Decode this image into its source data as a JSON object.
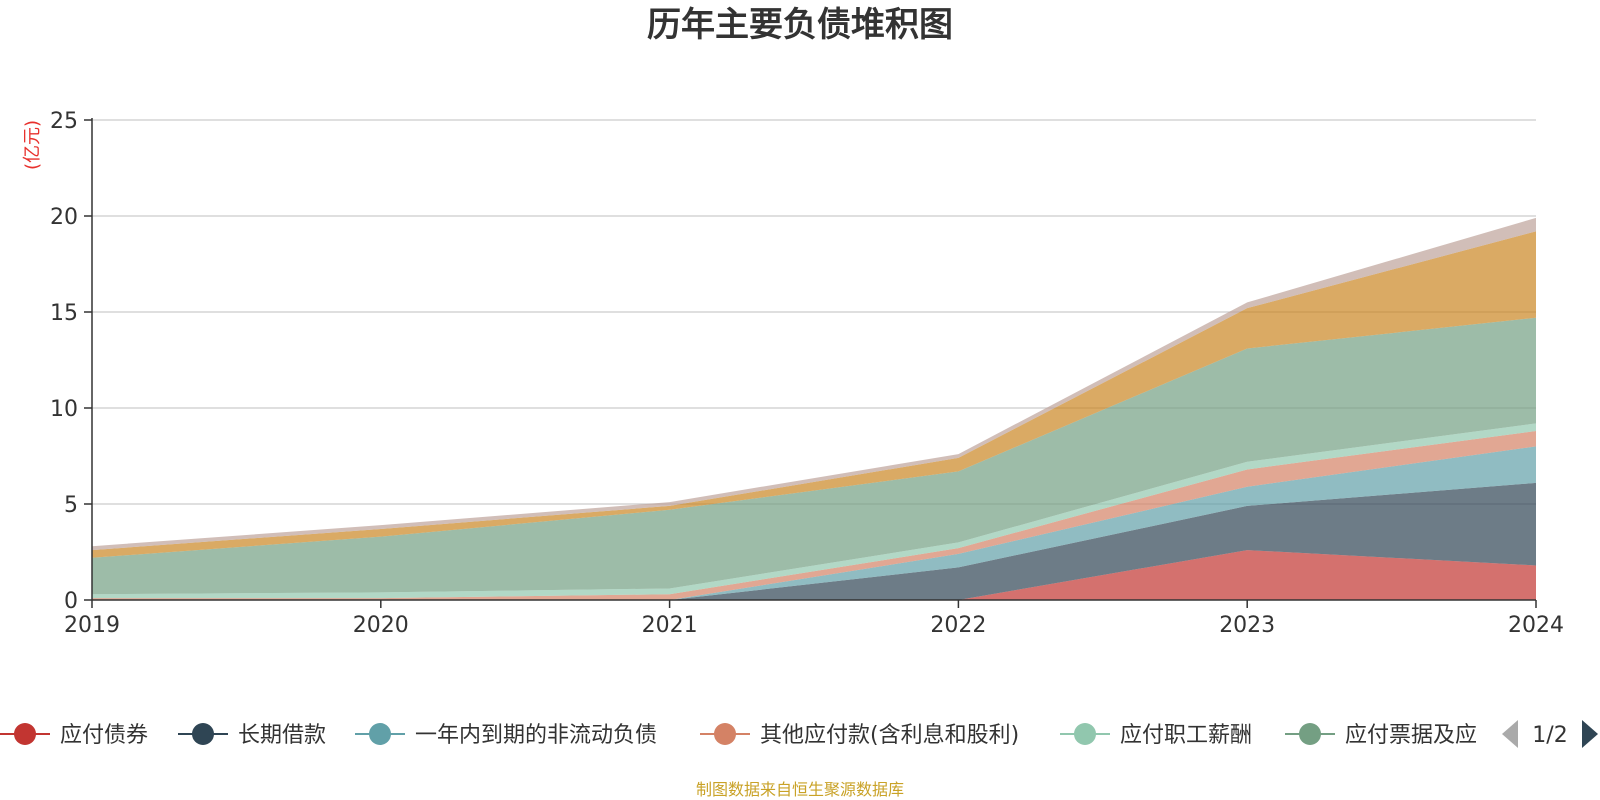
{
  "chart_data": {
    "type": "area",
    "stacked": true,
    "title": "历年主要负债堆积图",
    "unit_label": "(亿元)",
    "x": [
      "2019",
      "2020",
      "2021",
      "2022",
      "2023",
      "2024"
    ],
    "ylim": [
      0,
      25
    ],
    "yticks": [
      0,
      5,
      10,
      15,
      20,
      25
    ],
    "grid": true,
    "series": [
      {
        "name": "应付债券",
        "color": "#c23531",
        "values": [
          0,
          0,
          0,
          0,
          2.6,
          1.8
        ]
      },
      {
        "name": "长期借款",
        "color": "#2f4554",
        "values": [
          0,
          0,
          0,
          1.7,
          2.3,
          4.3
        ]
      },
      {
        "name": "一年内到期的非流动负债",
        "color": "#61a0a8",
        "values": [
          0,
          0,
          0,
          0.7,
          1.0,
          1.9
        ]
      },
      {
        "name": "其他应付款(含利息和股利)",
        "color": "#d48265",
        "values": [
          0.1,
          0.1,
          0.3,
          0.3,
          0.9,
          0.8
        ]
      },
      {
        "name": "应付职工薪酬",
        "color": "#91c7ae",
        "values": [
          0.2,
          0.3,
          0.3,
          0.3,
          0.4,
          0.4
        ]
      },
      {
        "name": "应付票据及应付账款",
        "color": "#749f83",
        "values": [
          1.9,
          2.9,
          4.1,
          3.7,
          5.9,
          5.5
        ]
      },
      {
        "name": "",
        "color": "#ca8622",
        "values": [
          0.4,
          0.4,
          0.2,
          0.7,
          2.1,
          4.5
        ]
      },
      {
        "name": "",
        "color": "#bda29a",
        "values": [
          0.2,
          0.2,
          0.2,
          0.2,
          0.3,
          0.7
        ]
      }
    ],
    "legend_visible": [
      {
        "label": "应付债券",
        "color": "#c23531"
      },
      {
        "label": "长期借款",
        "color": "#2f4554"
      },
      {
        "label": "一年内到期的非流动负债",
        "color": "#61a0a8"
      },
      {
        "label": "其他应付款(含利息和股利)",
        "color": "#d48265"
      },
      {
        "label": "应付职工薪酬",
        "color": "#91c7ae"
      },
      {
        "label": "应付票据及应",
        "color": "#749f83"
      }
    ],
    "legend_page": "1/2",
    "legend_position": "bottom"
  },
  "source_note": "制图数据来自恒生聚源数据库"
}
